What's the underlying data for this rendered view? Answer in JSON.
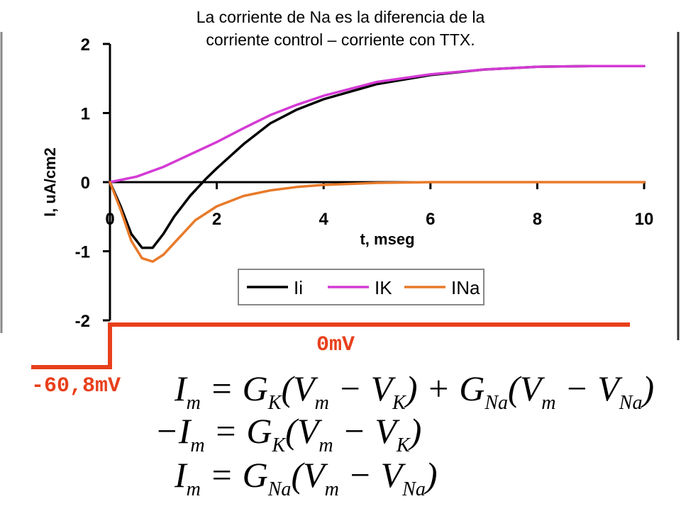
{
  "heading": {
    "line1": "La corriente de Na es la diferencia de la",
    "line2": "corriente control – corriente con TTX."
  },
  "chart_data": {
    "type": "line",
    "title": "",
    "xlabel": "t, mseg",
    "ylabel": "I, uA/cm2",
    "xlim": [
      0,
      10
    ],
    "ylim": [
      -2,
      2
    ],
    "x_ticks": [
      "0",
      "2",
      "4",
      "6",
      "8",
      "10"
    ],
    "y_ticks": [
      "2",
      "1",
      "0",
      "-1",
      "-2"
    ],
    "grid": false,
    "legend": "bottom-right",
    "series": [
      {
        "name": "Ii",
        "color": "#000000",
        "x": [
          0,
          0.2,
          0.4,
          0.6,
          0.8,
          1.0,
          1.2,
          1.5,
          1.8,
          2.0,
          2.5,
          3.0,
          3.5,
          4.0,
          5.0,
          6.0,
          7.0,
          8.0,
          9.0,
          10.0
        ],
        "y": [
          0,
          -0.35,
          -0.75,
          -0.95,
          -0.95,
          -0.75,
          -0.5,
          -0.2,
          0.05,
          0.2,
          0.55,
          0.85,
          1.05,
          1.2,
          1.42,
          1.55,
          1.63,
          1.67,
          1.68,
          1.68
        ]
      },
      {
        "name": "IK",
        "color": "#d43ad4",
        "x": [
          0,
          0.5,
          1.0,
          1.5,
          2.0,
          2.5,
          3.0,
          3.5,
          4.0,
          5.0,
          6.0,
          7.0,
          8.0,
          9.0,
          10.0
        ],
        "y": [
          0,
          0.08,
          0.22,
          0.4,
          0.58,
          0.78,
          0.97,
          1.12,
          1.25,
          1.45,
          1.56,
          1.63,
          1.67,
          1.68,
          1.68
        ]
      },
      {
        "name": "INa",
        "color": "#e87a2a",
        "x": [
          0,
          0.2,
          0.4,
          0.6,
          0.8,
          1.0,
          1.3,
          1.6,
          2.0,
          2.5,
          3.0,
          3.5,
          4.0,
          5.0,
          6.0,
          8.0,
          10.0
        ],
        "y": [
          0,
          -0.4,
          -0.85,
          -1.1,
          -1.15,
          -1.05,
          -0.8,
          -0.55,
          -0.35,
          -0.2,
          -0.12,
          -0.07,
          -0.04,
          -0.01,
          0,
          0,
          0
        ]
      }
    ],
    "voltage_step": {
      "low_label": "-60,8mV",
      "high_label": "0mV",
      "color": "#e8401c"
    }
  },
  "equations": {
    "eq1": {
      "t1": "I",
      "s1": "m",
      "t2": " = G",
      "s2": "K",
      "t3": "(V",
      "s3": "m",
      "t4": " − V",
      "s4": "K",
      "t5": ") + G",
      "s5": "Na",
      "t6": "(V",
      "s6": "m",
      "t7": " − V",
      "s7": "Na",
      "t8": ")"
    },
    "eq2": {
      "t1": "−I",
      "s1": "m",
      "t2": " = G",
      "s2": "K",
      "t3": "(V",
      "s3": "m",
      "t4": " − V",
      "s4": "K",
      "t5": ")"
    },
    "eq3": {
      "t1": "I",
      "s1": "m",
      "t2": " = G",
      "s2": "Na",
      "t3": "(V",
      "s3": "m",
      "t4": " − V",
      "s4": "Na",
      "t5": ")"
    }
  }
}
